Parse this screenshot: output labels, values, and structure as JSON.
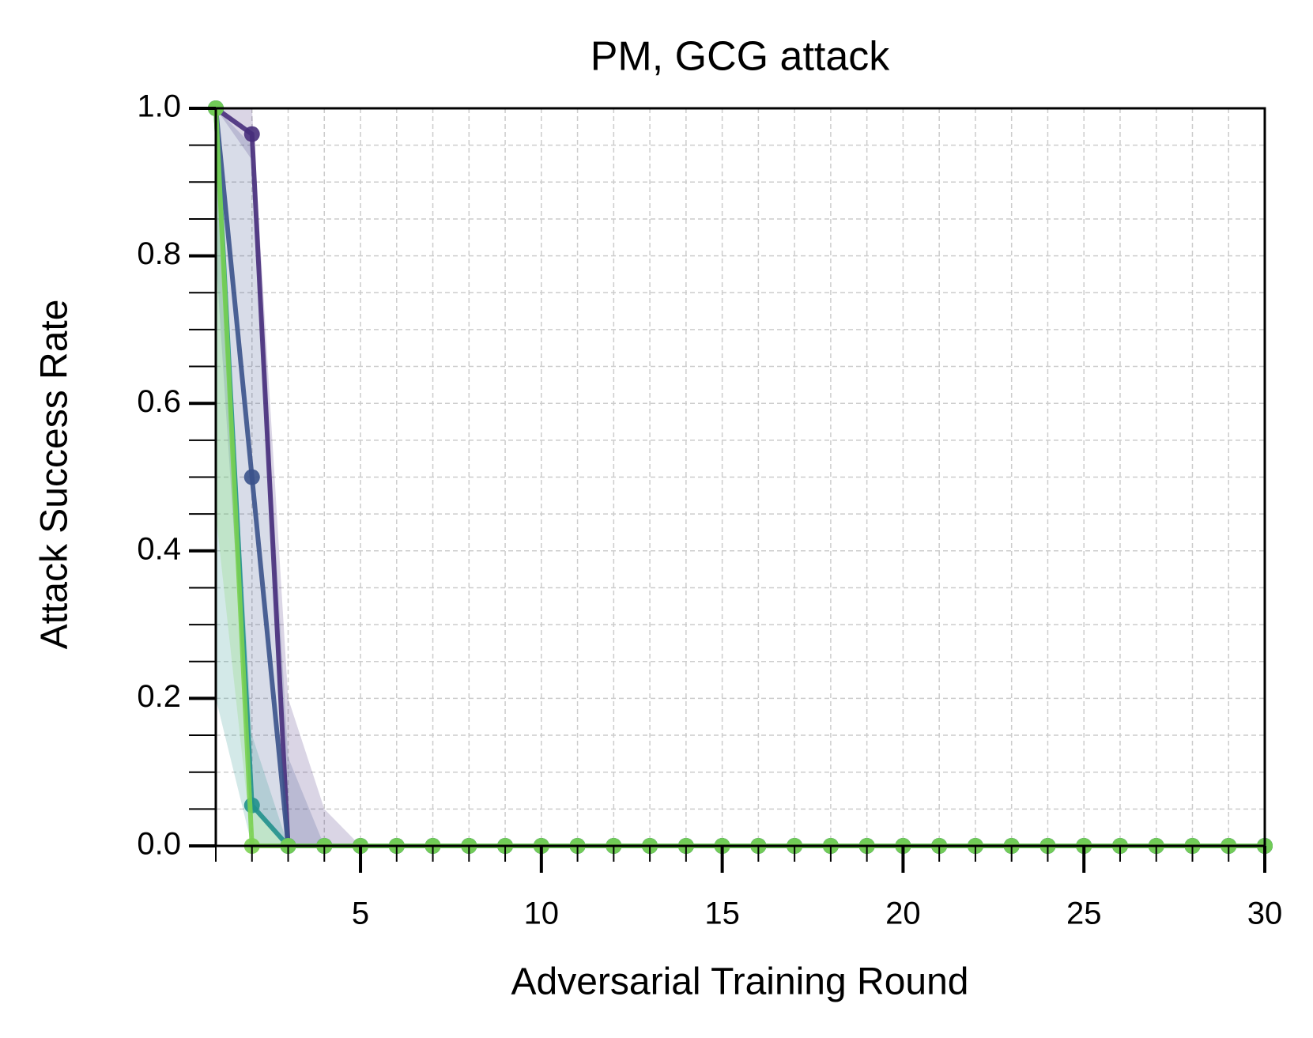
{
  "chart_data": {
    "type": "line",
    "title": "PM, GCG attack",
    "xlabel": "Adversarial Training Round",
    "ylabel": "Attack Success Rate",
    "x": [
      1,
      2,
      3,
      4,
      5,
      6,
      7,
      8,
      9,
      10,
      11,
      12,
      13,
      14,
      15,
      16,
      17,
      18,
      19,
      20,
      21,
      22,
      23,
      24,
      25,
      26,
      27,
      28,
      29,
      30
    ],
    "xlim": [
      1,
      30
    ],
    "xticks": [
      5,
      10,
      15,
      20,
      25,
      30
    ],
    "xminorticks": [
      1,
      2,
      3,
      4,
      5,
      6,
      7,
      8,
      9,
      10,
      11,
      12,
      13,
      14,
      15,
      16,
      17,
      18,
      19,
      20,
      21,
      22,
      23,
      24,
      25,
      26,
      27,
      28,
      29,
      30
    ],
    "ylim": [
      0,
      1
    ],
    "yticks": [
      {
        "value": 0,
        "label": "0.0"
      },
      0.2,
      0.4,
      0.6,
      0.8,
      {
        "value": 1,
        "label": "1.0"
      }
    ],
    "yminorticks": [
      0.05,
      0.1,
      0.15,
      0.25,
      0.3,
      0.35,
      0.45,
      0.5,
      0.55,
      0.65,
      0.7,
      0.75,
      0.85,
      0.9,
      0.95
    ],
    "grid": true,
    "series": [
      {
        "color": "#472d7b",
        "values": [
          1.0,
          0.965,
          0,
          0,
          0,
          0,
          0,
          0,
          0,
          0,
          0,
          0,
          0,
          0,
          0,
          0,
          0,
          0,
          0,
          0,
          0,
          0,
          0,
          0,
          0,
          0,
          0,
          0,
          0,
          0
        ],
        "lower": [
          1.0,
          0.93,
          0,
          0,
          0,
          0,
          0,
          0,
          0,
          0,
          0,
          0,
          0,
          0,
          0,
          0,
          0,
          0,
          0,
          0,
          0,
          0,
          0,
          0,
          0,
          0,
          0,
          0,
          0,
          0
        ],
        "upper": [
          1.0,
          1.0,
          0.2,
          0.05,
          0,
          0,
          0,
          0,
          0,
          0,
          0,
          0,
          0,
          0,
          0,
          0,
          0,
          0,
          0,
          0,
          0,
          0,
          0,
          0,
          0,
          0,
          0,
          0,
          0,
          0
        ]
      },
      {
        "color": "#3b528b",
        "values": [
          1.0,
          0.5,
          0,
          0,
          0,
          0,
          0,
          0,
          0,
          0,
          0,
          0,
          0,
          0,
          0,
          0,
          0,
          0,
          0,
          0,
          0,
          0,
          0,
          0,
          0,
          0,
          0,
          0,
          0,
          0
        ],
        "lower": [
          0.8,
          0.05,
          0,
          0,
          0,
          0,
          0,
          0,
          0,
          0,
          0,
          0,
          0,
          0,
          0,
          0,
          0,
          0,
          0,
          0,
          0,
          0,
          0,
          0,
          0,
          0,
          0,
          0,
          0,
          0
        ],
        "upper": [
          1.0,
          0.95,
          0.12,
          0,
          0,
          0,
          0,
          0,
          0,
          0,
          0,
          0,
          0,
          0,
          0,
          0,
          0,
          0,
          0,
          0,
          0,
          0,
          0,
          0,
          0,
          0,
          0,
          0,
          0,
          0
        ]
      },
      {
        "color": "#21918c",
        "values": [
          1.0,
          0.055,
          0,
          0,
          0,
          0,
          0,
          0,
          0,
          0,
          0,
          0,
          0,
          0,
          0,
          0,
          0,
          0,
          0,
          0,
          0,
          0,
          0,
          0,
          0,
          0,
          0,
          0,
          0,
          0
        ],
        "lower": [
          0.2,
          0,
          0,
          0,
          0,
          0,
          0,
          0,
          0,
          0,
          0,
          0,
          0,
          0,
          0,
          0,
          0,
          0,
          0,
          0,
          0,
          0,
          0,
          0,
          0,
          0,
          0,
          0,
          0,
          0
        ],
        "upper": [
          1.0,
          0.15,
          0,
          0,
          0,
          0,
          0,
          0,
          0,
          0,
          0,
          0,
          0,
          0,
          0,
          0,
          0,
          0,
          0,
          0,
          0,
          0,
          0,
          0,
          0,
          0,
          0,
          0,
          0,
          0
        ]
      },
      {
        "color": "#7ad151",
        "values": [
          1.0,
          0,
          0,
          0,
          0,
          0,
          0,
          0,
          0,
          0,
          0,
          0,
          0,
          0,
          0,
          0,
          0,
          0,
          0,
          0,
          0,
          0,
          0,
          0,
          0,
          0,
          0,
          0,
          0,
          0
        ],
        "lower": [
          0.45,
          0,
          0,
          0,
          0,
          0,
          0,
          0,
          0,
          0,
          0,
          0,
          0,
          0,
          0,
          0,
          0,
          0,
          0,
          0,
          0,
          0,
          0,
          0,
          0,
          0,
          0,
          0,
          0,
          0
        ],
        "upper": [
          1.0,
          0.05,
          0,
          0,
          0,
          0,
          0,
          0,
          0,
          0,
          0,
          0,
          0,
          0,
          0,
          0,
          0,
          0,
          0,
          0,
          0,
          0,
          0,
          0,
          0,
          0,
          0,
          0,
          0,
          0
        ]
      }
    ]
  }
}
